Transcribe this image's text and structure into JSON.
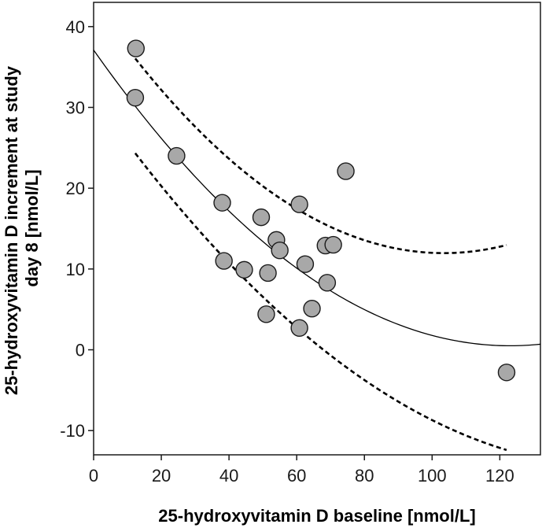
{
  "chart_data": {
    "type": "scatter",
    "title": "",
    "xlabel": "25-hydroxyvitamin D baseline [nmol/L]",
    "ylabel_lines": [
      "25-hydroxyvitamin D increment at study",
      "day 8  [nmol/L]"
    ],
    "xlim": [
      0,
      132
    ],
    "ylim": [
      -13,
      43
    ],
    "x_ticks": [
      0,
      20,
      40,
      60,
      80,
      100,
      120
    ],
    "y_ticks": [
      -10,
      0,
      10,
      20,
      30,
      40
    ],
    "grid": false,
    "points": [
      {
        "x": 12.5,
        "y": 37.3
      },
      {
        "x": 12.3,
        "y": 31.2
      },
      {
        "x": 24.5,
        "y": 24.0
      },
      {
        "x": 38.0,
        "y": 18.2
      },
      {
        "x": 38.5,
        "y": 11.0
      },
      {
        "x": 44.5,
        "y": 9.9
      },
      {
        "x": 49.5,
        "y": 16.4
      },
      {
        "x": 51.0,
        "y": 4.4
      },
      {
        "x": 51.5,
        "y": 9.5
      },
      {
        "x": 54.0,
        "y": 13.6
      },
      {
        "x": 55.0,
        "y": 12.3
      },
      {
        "x": 60.8,
        "y": 18.0
      },
      {
        "x": 60.8,
        "y": 2.7
      },
      {
        "x": 62.5,
        "y": 10.6
      },
      {
        "x": 64.5,
        "y": 5.1
      },
      {
        "x": 68.5,
        "y": 12.9
      },
      {
        "x": 69.0,
        "y": 8.3
      },
      {
        "x": 70.8,
        "y": 13.0
      },
      {
        "x": 74.5,
        "y": 22.1
      },
      {
        "x": 122.0,
        "y": -2.8
      }
    ],
    "series": [
      {
        "name": "quadratic fit",
        "style": "solid",
        "coefficients": [
          37.1,
          -0.595,
          0.002418
        ],
        "x_range": [
          0,
          132
        ]
      },
      {
        "name": "upper confidence band",
        "style": "dashed",
        "coefficients": [
          43.0,
          -0.6,
          0.0029
        ],
        "x_range": [
          12.3,
          122.0
        ]
      },
      {
        "name": "lower confidence band",
        "style": "dashed",
        "coefficients": [
          31.3,
          -0.59,
          0.0019
        ],
        "x_range": [
          12.3,
          122.0
        ]
      }
    ],
    "colors": {
      "marker_fill": "#a8a8a8",
      "marker_stroke": "#1a1a1a",
      "line": "#000000"
    }
  }
}
